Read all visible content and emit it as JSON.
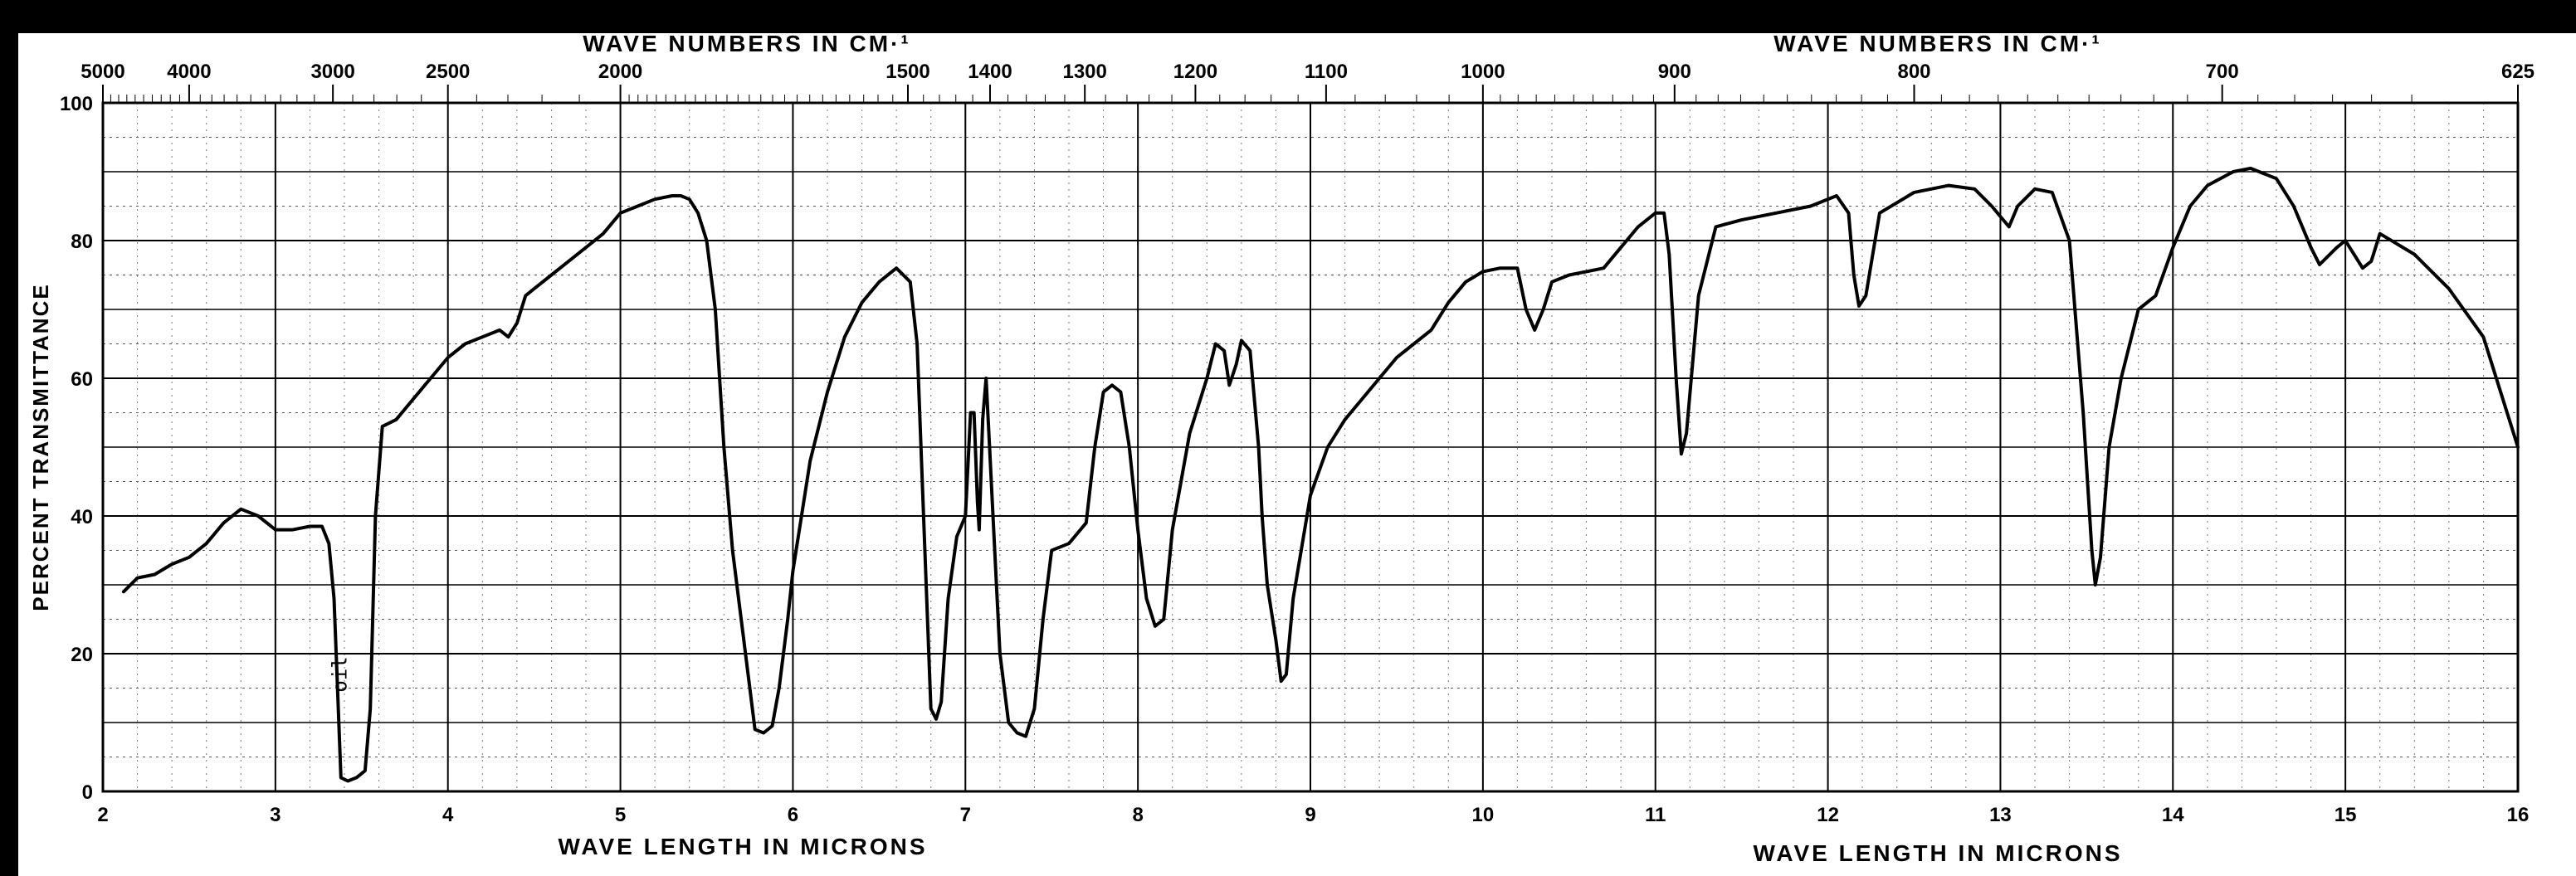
{
  "chart_data": {
    "type": "line",
    "title": "",
    "xlabel": "WAVE LENGTH IN MICRONS",
    "x2label": "WAVE NUMBERS IN CM-1",
    "x2label_display": "WAVE NUMBERS IN CM·¹",
    "ylabel": "PERCENT TRANSMITTANCE",
    "xlim": [
      2,
      16
    ],
    "ylim": [
      0,
      100
    ],
    "grid": true,
    "x_ticks": [
      "2",
      "3",
      "4",
      "5",
      "6",
      "7",
      "8",
      "9",
      "10",
      "11",
      "12",
      "13",
      "14",
      "15",
      "16"
    ],
    "y_ticks": [
      "0",
      "20",
      "40",
      "60",
      "80",
      "100"
    ],
    "x2_ticks": [
      {
        "label": "5000",
        "wavenumber": 5000
      },
      {
        "label": "4000",
        "wavenumber": 4000
      },
      {
        "label": "3000",
        "wavenumber": 3000
      },
      {
        "label": "2500",
        "wavenumber": 2500
      },
      {
        "label": "2000",
        "wavenumber": 2000
      },
      {
        "label": "1500",
        "wavenumber": 1500
      },
      {
        "label": "1400",
        "wavenumber": 1400
      },
      {
        "label": "1300",
        "wavenumber": 1300
      },
      {
        "label": "1200",
        "wavenumber": 1200
      },
      {
        "label": "1100",
        "wavenumber": 1100
      },
      {
        "label": "1000",
        "wavenumber": 1000
      },
      {
        "label": "900",
        "wavenumber": 900
      },
      {
        "label": "800",
        "wavenumber": 800
      },
      {
        "label": "700",
        "wavenumber": 700
      },
      {
        "label": "625",
        "wavenumber": 625
      }
    ],
    "annotations": [
      {
        "text": "oil",
        "x": 3.45,
        "y": 17
      }
    ],
    "series": [
      {
        "points": [
          [
            2.12,
            29
          ],
          [
            2.2,
            31
          ],
          [
            2.3,
            31.5
          ],
          [
            2.4,
            33
          ],
          [
            2.5,
            34
          ],
          [
            2.6,
            36
          ],
          [
            2.7,
            39
          ],
          [
            2.8,
            41
          ],
          [
            2.9,
            40
          ],
          [
            3.0,
            38
          ],
          [
            3.1,
            38
          ],
          [
            3.2,
            38.5
          ],
          [
            3.27,
            38.5
          ],
          [
            3.31,
            36
          ],
          [
            3.34,
            28
          ],
          [
            3.36,
            15
          ],
          [
            3.38,
            2
          ],
          [
            3.42,
            1.5
          ],
          [
            3.47,
            2
          ],
          [
            3.52,
            3
          ],
          [
            3.55,
            12
          ],
          [
            3.58,
            40
          ],
          [
            3.62,
            53
          ],
          [
            3.7,
            54
          ],
          [
            3.8,
            57
          ],
          [
            3.9,
            60
          ],
          [
            4.0,
            63
          ],
          [
            4.1,
            65
          ],
          [
            4.2,
            66
          ],
          [
            4.3,
            67
          ],
          [
            4.35,
            66
          ],
          [
            4.4,
            68
          ],
          [
            4.45,
            72
          ],
          [
            4.5,
            73
          ],
          [
            4.6,
            75
          ],
          [
            4.7,
            77
          ],
          [
            4.8,
            79
          ],
          [
            4.9,
            81
          ],
          [
            5.0,
            84
          ],
          [
            5.1,
            85
          ],
          [
            5.2,
            86
          ],
          [
            5.3,
            86.5
          ],
          [
            5.35,
            86.5
          ],
          [
            5.4,
            86
          ],
          [
            5.45,
            84
          ],
          [
            5.5,
            80
          ],
          [
            5.55,
            70
          ],
          [
            5.6,
            50
          ],
          [
            5.65,
            35
          ],
          [
            5.7,
            25
          ],
          [
            5.75,
            15
          ],
          [
            5.78,
            9
          ],
          [
            5.83,
            8.5
          ],
          [
            5.88,
            9.5
          ],
          [
            5.92,
            15
          ],
          [
            5.97,
            25
          ],
          [
            6.0,
            32
          ],
          [
            6.1,
            48
          ],
          [
            6.2,
            58
          ],
          [
            6.3,
            66
          ],
          [
            6.4,
            71
          ],
          [
            6.5,
            74
          ],
          [
            6.6,
            76
          ],
          [
            6.68,
            74
          ],
          [
            6.72,
            65
          ],
          [
            6.75,
            45
          ],
          [
            6.78,
            25
          ],
          [
            6.8,
            12
          ],
          [
            6.83,
            10.5
          ],
          [
            6.86,
            13
          ],
          [
            6.9,
            28
          ],
          [
            6.95,
            37
          ],
          [
            7.0,
            40
          ],
          [
            7.03,
            55
          ],
          [
            7.05,
            55
          ],
          [
            7.07,
            42
          ],
          [
            7.08,
            38
          ],
          [
            7.1,
            54
          ],
          [
            7.12,
            60
          ],
          [
            7.14,
            50
          ],
          [
            7.17,
            35
          ],
          [
            7.2,
            20
          ],
          [
            7.25,
            10
          ],
          [
            7.3,
            8.5
          ],
          [
            7.35,
            8
          ],
          [
            7.4,
            12
          ],
          [
            7.45,
            25
          ],
          [
            7.5,
            35
          ],
          [
            7.6,
            36
          ],
          [
            7.7,
            39
          ],
          [
            7.75,
            50
          ],
          [
            7.8,
            58
          ],
          [
            7.85,
            59
          ],
          [
            7.9,
            58
          ],
          [
            7.95,
            50
          ],
          [
            8.0,
            38
          ],
          [
            8.05,
            28
          ],
          [
            8.1,
            24
          ],
          [
            8.15,
            25
          ],
          [
            8.2,
            38
          ],
          [
            8.3,
            52
          ],
          [
            8.4,
            60
          ],
          [
            8.45,
            65
          ],
          [
            8.5,
            64
          ],
          [
            8.53,
            59
          ],
          [
            8.57,
            62
          ],
          [
            8.6,
            65.5
          ],
          [
            8.65,
            64
          ],
          [
            8.7,
            50
          ],
          [
            8.72,
            40
          ],
          [
            8.75,
            30
          ],
          [
            8.8,
            22
          ],
          [
            8.83,
            16
          ],
          [
            8.86,
            17
          ],
          [
            8.9,
            28
          ],
          [
            9.0,
            43
          ],
          [
            9.1,
            50
          ],
          [
            9.2,
            54
          ],
          [
            9.3,
            57
          ],
          [
            9.4,
            60
          ],
          [
            9.5,
            63
          ],
          [
            9.6,
            65
          ],
          [
            9.7,
            67
          ],
          [
            9.8,
            71
          ],
          [
            9.9,
            74
          ],
          [
            10.0,
            75.5
          ],
          [
            10.1,
            76
          ],
          [
            10.2,
            76
          ],
          [
            10.25,
            70
          ],
          [
            10.3,
            67
          ],
          [
            10.35,
            70
          ],
          [
            10.4,
            74
          ],
          [
            10.5,
            75
          ],
          [
            10.6,
            75.5
          ],
          [
            10.7,
            76
          ],
          [
            10.8,
            79
          ],
          [
            10.9,
            82
          ],
          [
            11.0,
            84
          ],
          [
            11.05,
            84
          ],
          [
            11.08,
            78
          ],
          [
            11.12,
            60
          ],
          [
            11.15,
            49
          ],
          [
            11.18,
            52
          ],
          [
            11.25,
            72
          ],
          [
            11.35,
            82
          ],
          [
            11.5,
            83
          ],
          [
            11.7,
            84
          ],
          [
            11.9,
            85
          ],
          [
            12.05,
            86.5
          ],
          [
            12.12,
            84
          ],
          [
            12.15,
            75
          ],
          [
            12.18,
            70.5
          ],
          [
            12.22,
            72
          ],
          [
            12.3,
            84
          ],
          [
            12.5,
            87
          ],
          [
            12.7,
            88
          ],
          [
            12.85,
            87.5
          ],
          [
            12.95,
            85
          ],
          [
            13.05,
            82
          ],
          [
            13.1,
            85
          ],
          [
            13.2,
            87.5
          ],
          [
            13.3,
            87
          ],
          [
            13.4,
            80
          ],
          [
            13.48,
            55
          ],
          [
            13.53,
            35
          ],
          [
            13.55,
            30
          ],
          [
            13.58,
            34
          ],
          [
            13.63,
            50
          ],
          [
            13.7,
            60
          ],
          [
            13.8,
            70
          ],
          [
            13.9,
            72
          ],
          [
            14.0,
            79
          ],
          [
            14.1,
            85
          ],
          [
            14.2,
            88
          ],
          [
            14.35,
            90
          ],
          [
            14.45,
            90.5
          ],
          [
            14.6,
            89
          ],
          [
            14.7,
            85
          ],
          [
            14.8,
            79
          ],
          [
            14.85,
            76.5
          ],
          [
            14.95,
            79
          ],
          [
            15.0,
            80
          ],
          [
            15.05,
            78
          ],
          [
            15.1,
            76
          ],
          [
            15.15,
            77
          ],
          [
            15.2,
            81
          ],
          [
            15.4,
            78
          ],
          [
            15.6,
            73
          ],
          [
            15.8,
            66
          ],
          [
            15.9,
            58
          ],
          [
            16.0,
            50
          ]
        ]
      }
    ]
  }
}
